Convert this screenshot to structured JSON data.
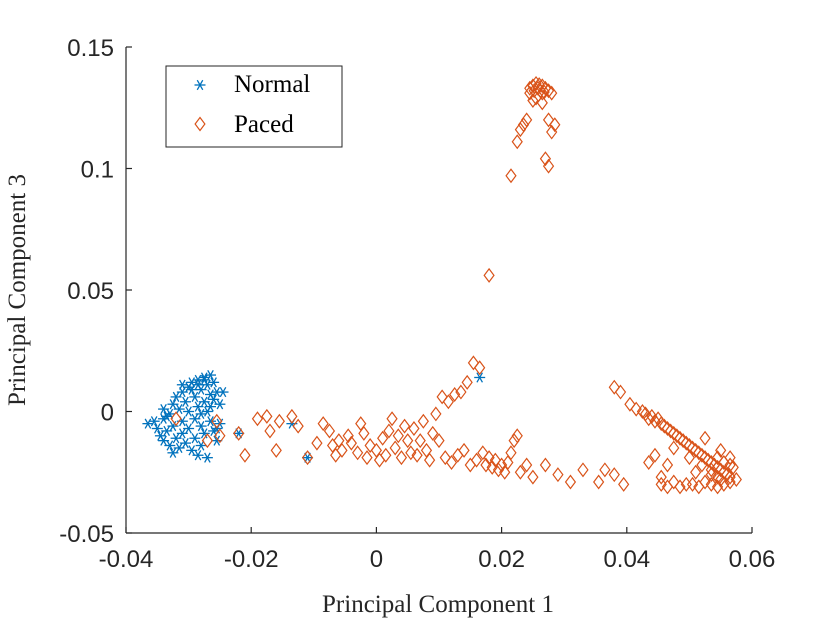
{
  "colors": {
    "normal": "#0072BD",
    "paced": "#D95319",
    "axis": "#262626"
  },
  "chart_data": {
    "type": "scatter",
    "title": "",
    "xlabel": "Principal Component 1",
    "ylabel": "Principal Component 3",
    "xlim": [
      -0.04,
      0.06
    ],
    "ylim": [
      -0.05,
      0.15
    ],
    "xticks": [
      -0.04,
      -0.02,
      0,
      0.02,
      0.04,
      0.06
    ],
    "xtick_labels": [
      "-0.04",
      "-0.02",
      "0",
      "0.02",
      "0.04",
      "0.06"
    ],
    "yticks": [
      -0.05,
      0,
      0.05,
      0.1,
      0.15
    ],
    "ytick_labels": [
      "-0.05",
      "0",
      "0.05",
      "0.1",
      "0.15"
    ],
    "grid": false,
    "legend": {
      "position": "top-left",
      "entries": [
        {
          "name": "Normal",
          "marker": "asterisk"
        },
        {
          "name": "Paced",
          "marker": "diamond"
        }
      ]
    },
    "series": [
      {
        "name": "Normal",
        "marker": "asterisk",
        "points": [
          [
            -0.0365,
            -0.005
          ],
          [
            -0.0355,
            -0.004
          ],
          [
            -0.035,
            -0.007
          ],
          [
            -0.0345,
            -0.01
          ],
          [
            -0.034,
            -0.003
          ],
          [
            -0.034,
            -0.012
          ],
          [
            -0.0335,
            -0.008
          ],
          [
            -0.033,
            -0.001
          ],
          [
            -0.033,
            -0.014
          ],
          [
            -0.0325,
            0.003
          ],
          [
            -0.0325,
            -0.006
          ],
          [
            -0.032,
            -0.011
          ],
          [
            -0.032,
            0.006
          ],
          [
            -0.0315,
            0.001
          ],
          [
            -0.0315,
            -0.015
          ],
          [
            -0.031,
            0.008
          ],
          [
            -0.031,
            -0.004
          ],
          [
            -0.031,
            -0.009
          ],
          [
            -0.0305,
            0.004
          ],
          [
            -0.0305,
            -0.013
          ],
          [
            -0.03,
            0.01
          ],
          [
            -0.03,
            0.0
          ],
          [
            -0.03,
            -0.007
          ],
          [
            -0.0295,
            0.012
          ],
          [
            -0.0295,
            -0.016
          ],
          [
            -0.029,
            0.006
          ],
          [
            -0.029,
            -0.003
          ],
          [
            -0.029,
            -0.011
          ],
          [
            -0.0285,
            0.013
          ],
          [
            -0.0285,
            0.002
          ],
          [
            -0.0285,
            -0.018
          ],
          [
            -0.028,
            0.009
          ],
          [
            -0.028,
            -0.006
          ],
          [
            -0.028,
            -0.014
          ],
          [
            -0.0275,
            0.014
          ],
          [
            -0.0275,
            0.004
          ],
          [
            -0.0275,
            -0.009
          ],
          [
            -0.027,
            0.011
          ],
          [
            -0.027,
            0.0
          ],
          [
            -0.027,
            -0.019
          ],
          [
            -0.0265,
            0.015
          ],
          [
            -0.0265,
            0.007
          ],
          [
            -0.0265,
            -0.004
          ],
          [
            -0.026,
            0.012
          ],
          [
            -0.026,
            0.005
          ],
          [
            -0.026,
            -0.008
          ],
          [
            -0.0255,
            0.008
          ],
          [
            -0.0255,
            -0.012
          ],
          [
            -0.025,
            0.003
          ],
          [
            -0.025,
            -0.005
          ],
          [
            -0.0245,
            0.008
          ],
          [
            -0.034,
            0.001
          ],
          [
            -0.0335,
            -0.002
          ],
          [
            -0.0325,
            -0.017
          ],
          [
            -0.031,
            0.011
          ],
          [
            -0.0295,
            0.009
          ],
          [
            -0.0285,
            0.011
          ],
          [
            -0.0275,
            0.013
          ],
          [
            -0.0265,
            0.002
          ],
          [
            -0.028,
            -0.001
          ],
          [
            -0.0255,
            -0.007
          ],
          [
            -0.022,
            -0.009
          ],
          [
            -0.0135,
            -0.005
          ],
          [
            -0.011,
            -0.019
          ],
          [
            0.0165,
            0.014
          ]
        ]
      },
      {
        "name": "Paced",
        "marker": "diamond",
        "points": [
          [
            -0.032,
            -0.003
          ],
          [
            -0.027,
            -0.012
          ],
          [
            -0.0255,
            -0.004
          ],
          [
            -0.025,
            -0.01
          ],
          [
            -0.022,
            -0.009
          ],
          [
            -0.021,
            -0.018
          ],
          [
            -0.019,
            -0.003
          ],
          [
            -0.0175,
            -0.002
          ],
          [
            -0.017,
            -0.008
          ],
          [
            -0.016,
            -0.016
          ],
          [
            -0.0155,
            -0.004
          ],
          [
            -0.0135,
            -0.002
          ],
          [
            -0.0125,
            -0.006
          ],
          [
            -0.011,
            -0.019
          ],
          [
            -0.0095,
            -0.013
          ],
          [
            -0.0085,
            -0.005
          ],
          [
            -0.0075,
            -0.008
          ],
          [
            -0.007,
            -0.014
          ],
          [
            -0.0065,
            -0.018
          ],
          [
            -0.006,
            -0.012
          ],
          [
            -0.0055,
            -0.016
          ],
          [
            -0.0045,
            -0.01
          ],
          [
            -0.004,
            -0.013
          ],
          [
            -0.003,
            -0.017
          ],
          [
            -0.0025,
            -0.005
          ],
          [
            -0.002,
            -0.009
          ],
          [
            -0.0015,
            -0.019
          ],
          [
            -0.001,
            -0.014
          ],
          [
            0.0,
            -0.016
          ],
          [
            0.0005,
            -0.02
          ],
          [
            0.001,
            -0.011
          ],
          [
            0.0015,
            -0.018
          ],
          [
            0.002,
            -0.008
          ],
          [
            0.0025,
            -0.003
          ],
          [
            0.003,
            -0.015
          ],
          [
            0.0035,
            -0.01
          ],
          [
            0.004,
            -0.019
          ],
          [
            0.0045,
            -0.006
          ],
          [
            0.005,
            -0.012
          ],
          [
            0.0055,
            -0.017
          ],
          [
            0.006,
            -0.007
          ],
          [
            0.0065,
            -0.018
          ],
          [
            0.007,
            -0.012
          ],
          [
            0.0075,
            -0.004
          ],
          [
            0.008,
            -0.016
          ],
          [
            0.0085,
            -0.02
          ],
          [
            0.009,
            -0.009
          ],
          [
            0.0095,
            -0.001
          ],
          [
            0.01,
            -0.012
          ],
          [
            0.0105,
            0.006
          ],
          [
            0.011,
            -0.019
          ],
          [
            0.0115,
            0.004
          ],
          [
            0.012,
            -0.021
          ],
          [
            0.0125,
            0.007
          ],
          [
            0.013,
            -0.018
          ],
          [
            0.0135,
            0.008
          ],
          [
            0.014,
            -0.016
          ],
          [
            0.0145,
            0.012
          ],
          [
            0.015,
            -0.022
          ],
          [
            0.0155,
            0.02
          ],
          [
            0.016,
            -0.02
          ],
          [
            0.0165,
            0.018
          ],
          [
            0.017,
            -0.017
          ],
          [
            0.0175,
            -0.022
          ],
          [
            0.018,
            -0.019
          ],
          [
            0.0185,
            -0.023
          ],
          [
            0.019,
            -0.02
          ],
          [
            0.0195,
            -0.024
          ],
          [
            0.02,
            -0.022
          ],
          [
            0.0205,
            -0.025
          ],
          [
            0.021,
            -0.021
          ],
          [
            0.0215,
            -0.017
          ],
          [
            0.022,
            -0.012
          ],
          [
            0.0225,
            -0.01
          ],
          [
            0.023,
            -0.025
          ],
          [
            0.024,
            -0.022
          ],
          [
            0.025,
            -0.027
          ],
          [
            0.027,
            -0.022
          ],
          [
            0.029,
            -0.026
          ],
          [
            0.031,
            -0.029
          ],
          [
            0.033,
            -0.024
          ],
          [
            0.0355,
            -0.029
          ],
          [
            0.0365,
            -0.024
          ],
          [
            0.038,
            -0.026
          ],
          [
            0.0395,
            -0.03
          ],
          [
            0.038,
            0.01
          ],
          [
            0.039,
            0.008
          ],
          [
            0.0405,
            0.003
          ],
          [
            0.0415,
            0.001
          ],
          [
            0.0425,
            0.0
          ],
          [
            0.043,
            -0.001
          ],
          [
            0.0435,
            -0.003
          ],
          [
            0.044,
            -0.002
          ],
          [
            0.0445,
            -0.004
          ],
          [
            0.045,
            -0.003
          ],
          [
            0.0455,
            -0.005
          ],
          [
            0.046,
            -0.006
          ],
          [
            0.0465,
            -0.007
          ],
          [
            0.047,
            -0.008
          ],
          [
            0.0475,
            -0.009
          ],
          [
            0.048,
            -0.01
          ],
          [
            0.0485,
            -0.011
          ],
          [
            0.049,
            -0.012
          ],
          [
            0.0495,
            -0.013
          ],
          [
            0.05,
            -0.014
          ],
          [
            0.0505,
            -0.015
          ],
          [
            0.051,
            -0.016
          ],
          [
            0.0515,
            -0.017
          ],
          [
            0.052,
            -0.018
          ],
          [
            0.0525,
            -0.019
          ],
          [
            0.053,
            -0.02
          ],
          [
            0.0535,
            -0.021
          ],
          [
            0.054,
            -0.022
          ],
          [
            0.0545,
            -0.023
          ],
          [
            0.055,
            -0.024
          ],
          [
            0.0555,
            -0.025
          ],
          [
            0.056,
            -0.026
          ],
          [
            0.0565,
            -0.027
          ],
          [
            0.057,
            -0.023
          ],
          [
            0.0565,
            -0.029
          ],
          [
            0.0555,
            -0.03
          ],
          [
            0.0545,
            -0.031
          ],
          [
            0.0535,
            -0.03
          ],
          [
            0.0525,
            -0.029
          ],
          [
            0.0515,
            -0.031
          ],
          [
            0.0505,
            -0.03
          ],
          [
            0.0495,
            -0.03
          ],
          [
            0.0485,
            -0.031
          ],
          [
            0.0475,
            -0.029
          ],
          [
            0.0465,
            -0.031
          ],
          [
            0.0455,
            -0.03
          ],
          [
            0.051,
            -0.025
          ],
          [
            0.0535,
            -0.026
          ],
          [
            0.0545,
            -0.027
          ],
          [
            0.0555,
            -0.021
          ],
          [
            0.0565,
            -0.019
          ],
          [
            0.052,
            -0.022
          ],
          [
            0.05,
            -0.019
          ],
          [
            0.0475,
            -0.015
          ],
          [
            0.0465,
            -0.022
          ],
          [
            0.0445,
            -0.018
          ],
          [
            0.0435,
            -0.021
          ],
          [
            0.0455,
            -0.027
          ],
          [
            0.0575,
            -0.028
          ],
          [
            0.0525,
            -0.011
          ],
          [
            0.055,
            -0.016
          ],
          [
            0.0565,
            -0.022
          ],
          [
            0.0545,
            -0.019
          ],
          [
            0.0535,
            -0.024
          ],
          [
            0.055,
            -0.028
          ],
          [
            0.018,
            0.056
          ],
          [
            0.0215,
            0.097
          ],
          [
            0.0225,
            0.111
          ],
          [
            0.023,
            0.116
          ],
          [
            0.0235,
            0.118
          ],
          [
            0.024,
            0.12
          ],
          [
            0.025,
            0.128
          ],
          [
            0.0245,
            0.131
          ],
          [
            0.0265,
            0.131
          ],
          [
            0.0275,
            0.101
          ],
          [
            0.027,
            0.104
          ],
          [
            0.028,
            0.115
          ],
          [
            0.0275,
            0.12
          ],
          [
            0.0265,
            0.127
          ],
          [
            0.0255,
            0.129
          ],
          [
            0.0285,
            0.118
          ],
          [
            0.0245,
            0.133
          ],
          [
            0.025,
            0.134
          ],
          [
            0.0255,
            0.135
          ],
          [
            0.026,
            0.1345
          ],
          [
            0.0265,
            0.134
          ],
          [
            0.027,
            0.133
          ],
          [
            0.0275,
            0.132
          ],
          [
            0.028,
            0.131
          ],
          [
            0.0258,
            0.133
          ],
          [
            0.0262,
            0.132
          ],
          [
            0.0252,
            0.132
          ],
          [
            0.0268,
            0.1315
          ]
        ]
      }
    ]
  }
}
